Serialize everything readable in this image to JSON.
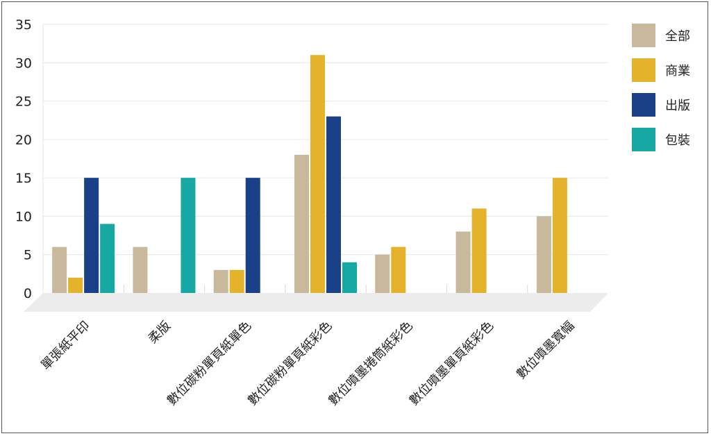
{
  "chart_data": {
    "type": "bar",
    "title": "",
    "xlabel": "",
    "ylabel": "",
    "ylim": [
      0,
      35
    ],
    "yticks": [
      0,
      5,
      10,
      15,
      20,
      25,
      30,
      35
    ],
    "grid": true,
    "legend_position": "right",
    "categories": [
      "單張紙平印",
      "柔版",
      "數位碳粉單頁紙單色",
      "數位碳粉單頁紙彩色",
      "數位噴墨捲筒紙彩色",
      "數位噴墨單頁紙彩色",
      "數位噴墨寬幅"
    ],
    "series": [
      {
        "name": "全部",
        "color": "#c8b99c",
        "values": [
          6,
          6,
          3,
          18,
          5,
          8,
          10
        ]
      },
      {
        "name": "商業",
        "color": "#e5b22b",
        "values": [
          2,
          0,
          3,
          31,
          6,
          11,
          15
        ]
      },
      {
        "name": "出版",
        "color": "#1a4187",
        "values": [
          15,
          0,
          15,
          23,
          0,
          0,
          0
        ]
      },
      {
        "name": "包裝",
        "color": "#17a8a4",
        "values": [
          9,
          15,
          0,
          4,
          0,
          0,
          0
        ]
      }
    ]
  }
}
